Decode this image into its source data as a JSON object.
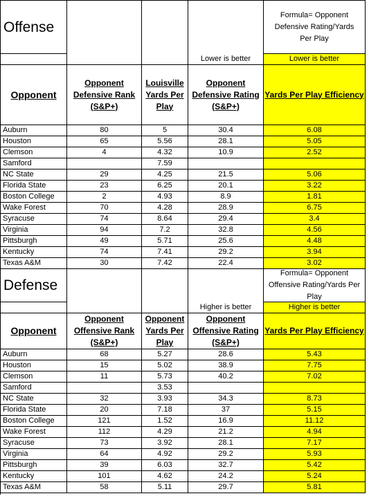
{
  "offense": {
    "title": "Offense",
    "formula": [
      "Formula= Opponent",
      "Defensive Rating/Yards",
      "Per Play"
    ],
    "note_rating": "Lower is better",
    "note_efficiency": "Lower is better",
    "headers": [
      [
        "Opponent"
      ],
      [
        "Opponent",
        "Defensive Rank",
        "(S&P+)"
      ],
      [
        "Louisville",
        "Yards Per",
        "Play"
      ],
      [
        "Opponent",
        "Defensive Rating",
        "(S&P+)"
      ],
      [
        "Yards Per Play Efficiency"
      ]
    ],
    "rows": [
      [
        "Auburn",
        80,
        5,
        30.4,
        6.08
      ],
      [
        "Houston",
        65,
        5.56,
        28.1,
        5.05
      ],
      [
        "Clemson",
        4,
        4.32,
        10.9,
        2.52
      ],
      [
        "Samford",
        null,
        7.59,
        null,
        null
      ],
      [
        "NC State",
        29,
        4.25,
        21.5,
        5.06
      ],
      [
        "Florida State",
        23,
        6.25,
        20.1,
        3.22
      ],
      [
        "Boston College",
        2,
        4.93,
        8.9,
        1.81
      ],
      [
        "Wake Forest",
        70,
        4.28,
        28.9,
        6.75
      ],
      [
        "Syracuse",
        74,
        8.64,
        29.4,
        3.4
      ],
      [
        "Virginia",
        94,
        7.2,
        32.8,
        4.56
      ],
      [
        "Pittsburgh",
        49,
        5.71,
        25.6,
        4.48
      ],
      [
        "Kentucky",
        74,
        7.41,
        29.2,
        3.94
      ],
      [
        "Texas A&M",
        30,
        7.42,
        22.4,
        3.02
      ]
    ]
  },
  "defense": {
    "title": "Defense",
    "formula": [
      "Formula= Opponent",
      "Offensive Rating/Yards Per",
      "Play"
    ],
    "note_rating": "Higher is better",
    "note_efficiency": "Higher is better",
    "headers": [
      [
        "Opponent"
      ],
      [
        "Opponent",
        "Offensive Rank",
        "(S&P+)"
      ],
      [
        "Opponent",
        "Yards Per",
        "Play"
      ],
      [
        "Opponent",
        "Offensive Rating",
        "(S&P+)"
      ],
      [
        "Yards Per Play Efficiency"
      ]
    ],
    "rows": [
      [
        "Auburn",
        68,
        5.27,
        28.6,
        5.43
      ],
      [
        "Houston",
        15,
        5.02,
        38.9,
        7.75
      ],
      [
        "Clemson",
        11,
        5.73,
        40.2,
        7.02
      ],
      [
        "Samford",
        null,
        3.53,
        null,
        null
      ],
      [
        "NC State",
        32,
        3.93,
        34.3,
        8.73
      ],
      [
        "Florida State",
        20,
        7.18,
        37,
        5.15
      ],
      [
        "Boston College",
        121,
        1.52,
        16.9,
        11.12
      ],
      [
        "Wake Forest",
        112,
        4.29,
        21.2,
        4.94
      ],
      [
        "Syracuse",
        73,
        3.92,
        28.1,
        7.17
      ],
      [
        "Virginia",
        64,
        4.92,
        29.2,
        5.93
      ],
      [
        "Pittsburgh",
        39,
        6.03,
        32.7,
        5.42
      ],
      [
        "Kentucky",
        101,
        4.62,
        24.2,
        5.24
      ],
      [
        "Texas A&M",
        58,
        5.11,
        29.7,
        5.81
      ]
    ]
  }
}
